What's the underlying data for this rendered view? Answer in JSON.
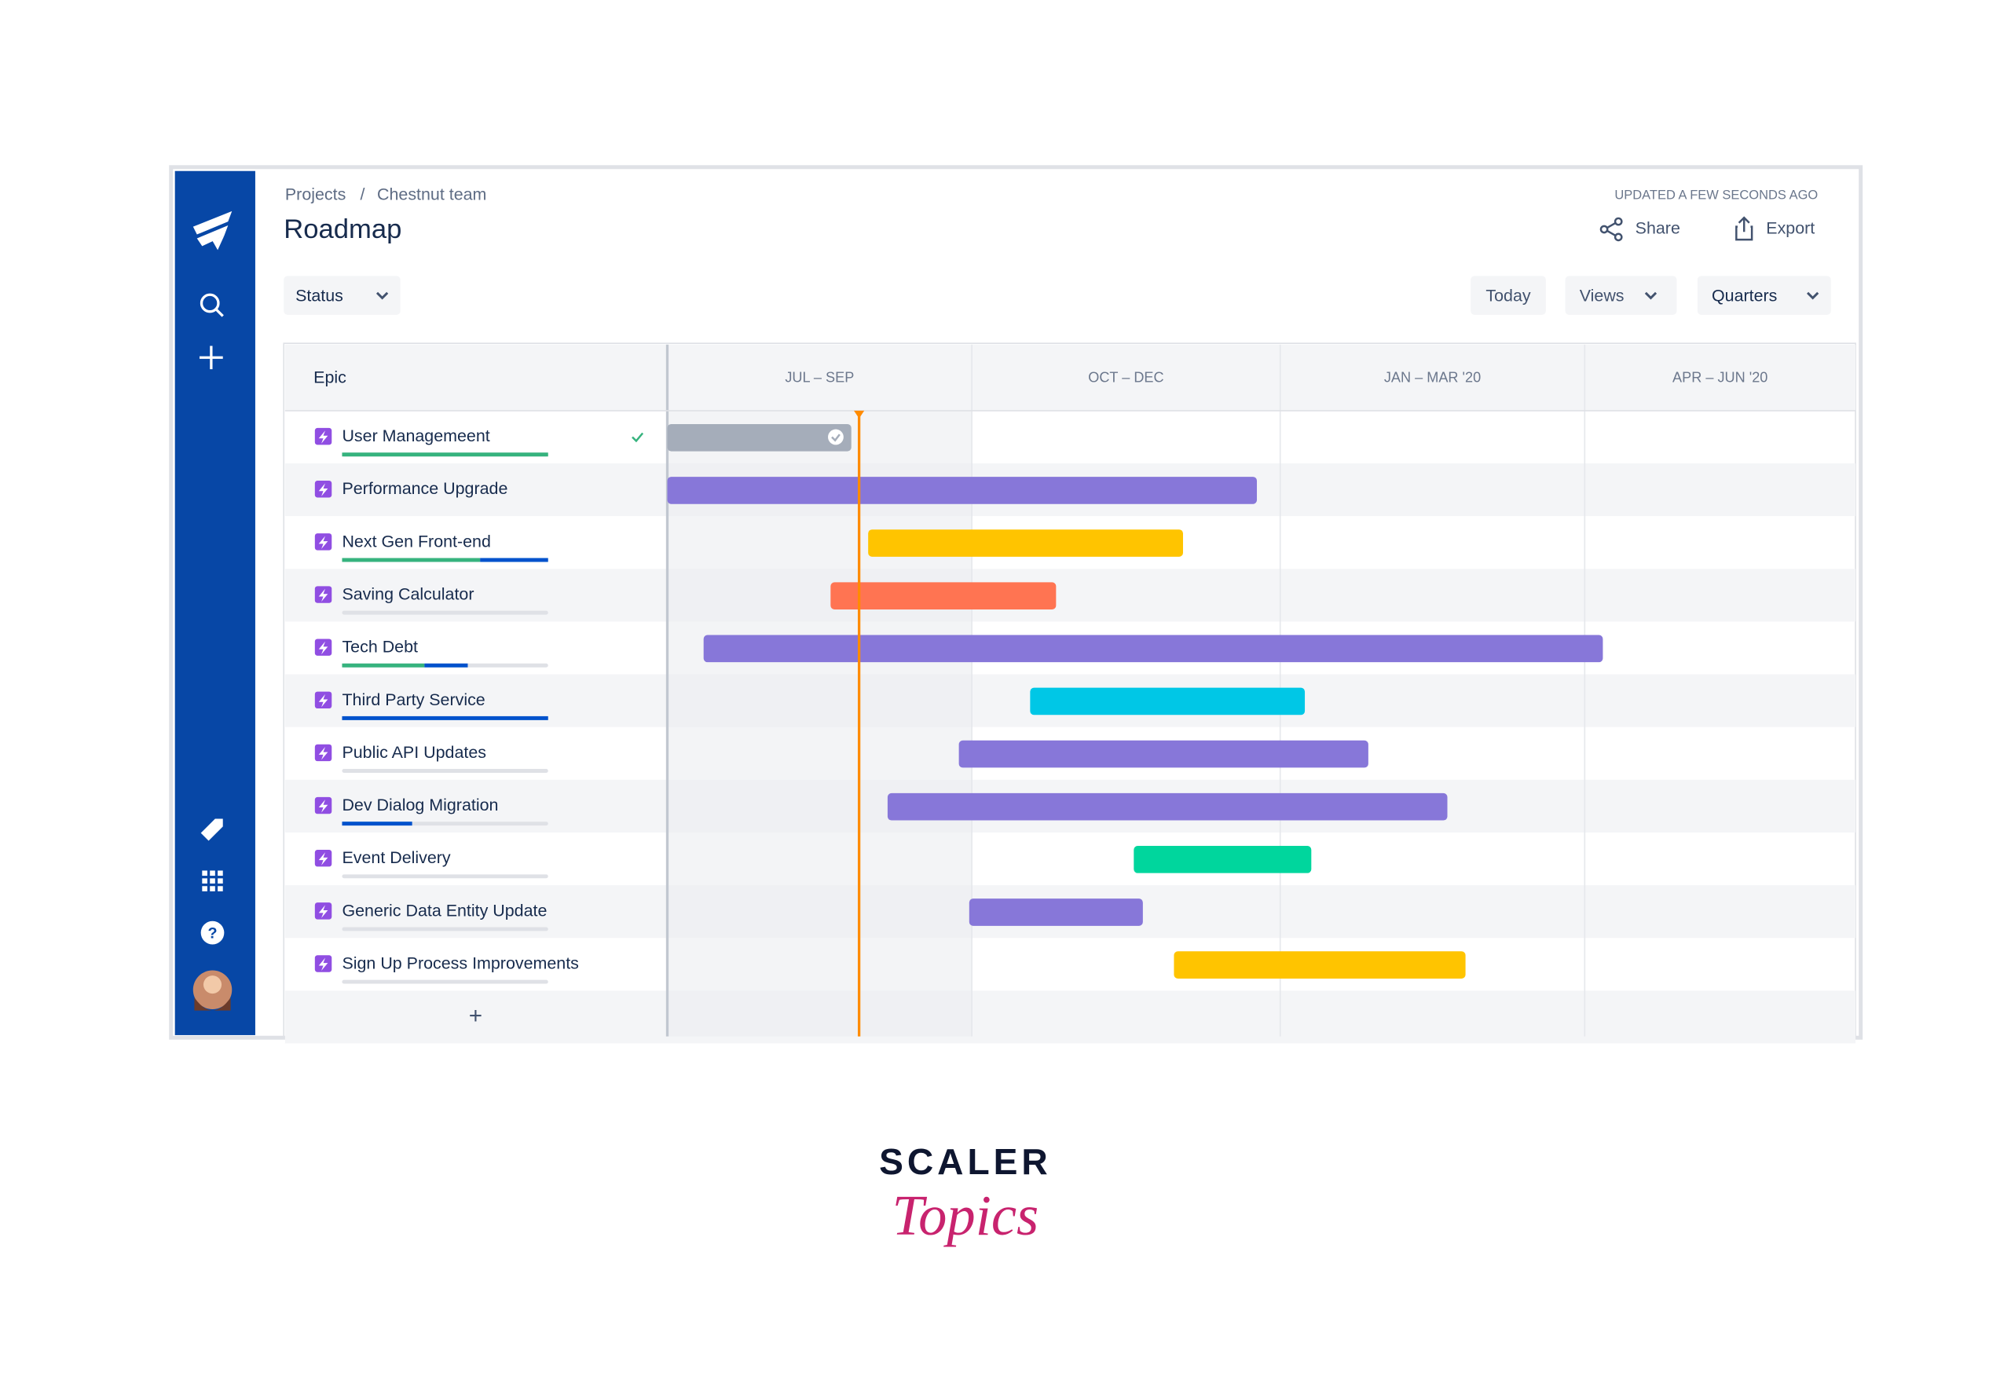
{
  "breadcrumb": {
    "items": [
      "Projects",
      "Chestnut team"
    ],
    "separator": "/"
  },
  "header": {
    "title": "Roadmap",
    "updated": "UPDATED A FEW SECONDS AGO",
    "actions": [
      "Share",
      "Export"
    ]
  },
  "toolbar": {
    "filter": "Status",
    "buttons": [
      "Today",
      "Views",
      "Quarters"
    ]
  },
  "table": {
    "column_header": "Epic",
    "quarters": [
      "JUL – SEP",
      "OCT – DEC",
      "JAN – MAR '20",
      "APR – JUN '20"
    ],
    "epics": [
      "User Managemeent",
      "Performance Upgrade",
      "Next Gen Front-end",
      "Saving Calculator",
      "Tech Debt",
      "Third Party Service",
      "Public API Updates",
      "Dev Dialog Migration",
      "Event Delivery",
      "Generic Data Entity Update",
      "Sign Up Process Improvements"
    ],
    "add": "+"
  },
  "logo": {
    "line1": "SCALER",
    "line2": "Topics"
  }
}
